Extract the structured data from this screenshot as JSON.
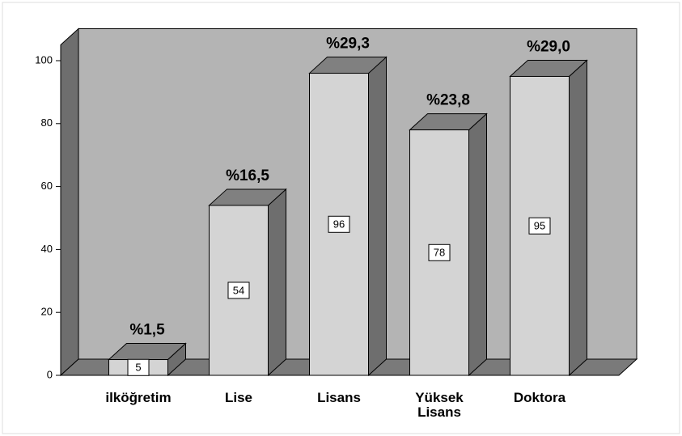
{
  "chart_data": {
    "type": "bar3d",
    "categories": [
      "ilköğretim",
      "Lise",
      "Lisans",
      "Yüksek Lisans",
      "Doktora"
    ],
    "values": [
      5,
      54,
      96,
      78,
      95
    ],
    "annotations": [
      "%1,5",
      "%16,5",
      "%29,3",
      "%23,8",
      "%29,0"
    ],
    "color": "#d4d4d4",
    "ylim": [
      0,
      105
    ],
    "yticks": [
      0,
      20,
      40,
      60,
      80,
      100
    ]
  }
}
